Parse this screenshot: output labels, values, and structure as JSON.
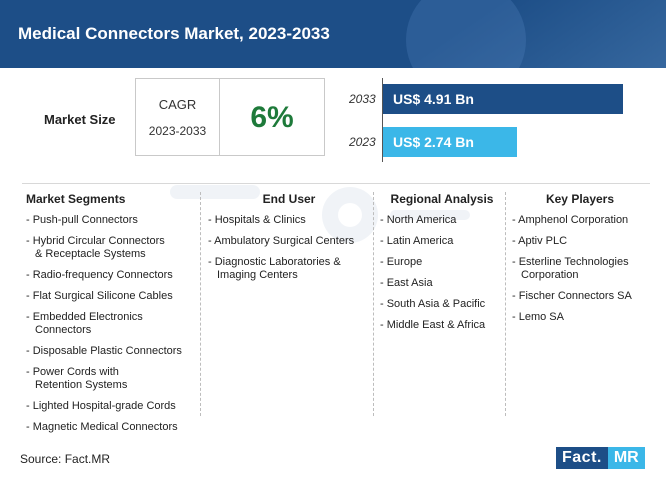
{
  "header": {
    "title": "Medical Connectors Market, 2023-2033"
  },
  "market_size": {
    "label": "Market Size",
    "cagr_label": "CAGR",
    "cagr_years": "2023-2033",
    "cagr_value": "6%"
  },
  "bars": [
    {
      "year": "2033",
      "label": "US$ 4.91 Bn",
      "value": 4.91,
      "color": "#1d4e87"
    },
    {
      "year": "2023",
      "label": "US$ 2.74 Bn",
      "value": 2.74,
      "color": "#3bb7e8"
    }
  ],
  "columns": {
    "segments": {
      "heading": "Market Segments",
      "items": [
        [
          "- Push-pull Connectors"
        ],
        [
          "- Hybrid Circular Connectors",
          "& Receptacle Systems"
        ],
        [
          "- Radio-frequency Connectors"
        ],
        [
          "- Flat Surgical Silicone Cables"
        ],
        [
          "- Embedded Electronics",
          "Connectors"
        ],
        [
          "- Disposable Plastic Connectors"
        ],
        [
          "- Power Cords with",
          "Retention Systems"
        ],
        [
          "- Lighted Hospital-grade Cords"
        ],
        [
          "- Magnetic Medical Connectors"
        ]
      ]
    },
    "end_user": {
      "heading": "End User",
      "items": [
        [
          "- Hospitals & Clinics"
        ],
        [
          "- Ambulatory Surgical Centers"
        ],
        [
          "- Diagnostic Laboratories &",
          "Imaging Centers"
        ]
      ]
    },
    "regional": {
      "heading": "Regional Analysis",
      "items": [
        [
          "- North America"
        ],
        [
          "- Latin America"
        ],
        [
          "- Europe"
        ],
        [
          "- East Asia"
        ],
        [
          "- South Asia & Pacific"
        ],
        [
          "- Middle East & Africa"
        ]
      ]
    },
    "players": {
      "heading": "Key Players",
      "items": [
        [
          "- Amphenol Corporation"
        ],
        [
          "- Aptiv PLC"
        ],
        [
          "- Esterline Technologies",
          "Corporation"
        ],
        [
          "- Fischer Connectors SA"
        ],
        [
          "- Lemo SA"
        ]
      ]
    }
  },
  "footer": {
    "source": "Source: Fact.MR",
    "logo_part1": "Fact.",
    "logo_part2": "MR"
  }
}
